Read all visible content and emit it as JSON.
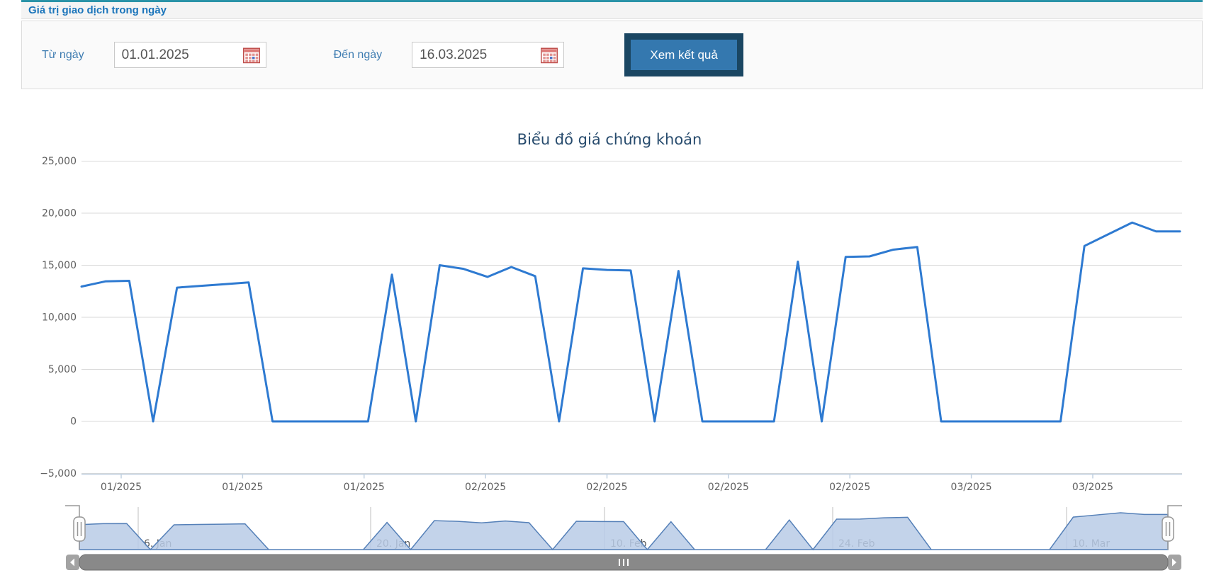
{
  "panel": {
    "title": "Giá trị giao dịch trong ngày"
  },
  "filter": {
    "from_label": "Từ ngày",
    "from_value": "01.01.2025",
    "to_label": "Đến ngày",
    "to_value": "16.03.2025",
    "submit_label": "Xem kết quả",
    "calendar_icon": "calendar-icon"
  },
  "chart_data": {
    "type": "line",
    "title": "Biểu đồ giá chứng khoán",
    "ylabel": "",
    "xlabel": "",
    "ylim": [
      -5000,
      25000
    ],
    "grid": true,
    "y_ticks": [
      25000,
      20000,
      15000,
      10000,
      5000,
      0,
      -5000
    ],
    "x_tick_labels": [
      "01/2025",
      "01/2025",
      "01/2025",
      "02/2025",
      "02/2025",
      "02/2025",
      "02/2025",
      "03/2025",
      "03/2025"
    ],
    "series": [
      {
        "name": "Giá chứng khoán",
        "dates": [
          "01/01",
          "01/03",
          "01/04",
          "01/06",
          "01/07",
          "01/09",
          "01/11",
          "01/12",
          "01/14",
          "01/15",
          "01/17",
          "01/19",
          "01/20",
          "01/22",
          "01/24",
          "01/25",
          "01/27",
          "01/28",
          "01/30",
          "02/01",
          "02/02",
          "02/04",
          "02/05",
          "02/07",
          "02/09",
          "02/10",
          "02/12",
          "02/13",
          "02/15",
          "02/17",
          "02/18",
          "02/20",
          "02/21",
          "02/23",
          "02/25",
          "02/26",
          "02/28",
          "03/02",
          "03/03",
          "03/05",
          "03/06",
          "03/08",
          "03/10",
          "03/11",
          "03/13",
          "03/14",
          "03/16"
        ],
        "values": [
          12950,
          13450,
          13500,
          0,
          12850,
          13020,
          13180,
          13350,
          0,
          0,
          0,
          0,
          0,
          14100,
          0,
          15000,
          14650,
          13880,
          14830,
          13950,
          0,
          14700,
          14550,
          14500,
          0,
          14450,
          0,
          0,
          0,
          0,
          15350,
          0,
          15800,
          15850,
          16500,
          16750,
          0,
          0,
          0,
          0,
          0,
          0,
          16850,
          17975,
          19100,
          18250,
          18250
        ]
      }
    ],
    "navigator": {
      "labels": [
        "6. Jan",
        "20. Jan",
        "10. Feb",
        "24. Feb",
        "10. Mar"
      ],
      "grip": "III"
    },
    "colors": {
      "line": "#2e7ad1",
      "grid": "#d8d8d8",
      "axis_line": "#c0d0e0",
      "tick_label": "#606060",
      "title": "#274b6d",
      "nav_fill": "#b9cbe6",
      "nav_line": "#5580b8",
      "nav_grid": "#bfbfbf",
      "nav_label": "#555555",
      "frame": "#999999",
      "handle_fill": "#fdfdfd",
      "handle_stroke": "#979797",
      "scrollbar_thumb": "#898989",
      "scrollbar_thumb_border": "#6e6e6e",
      "scrollbar_button": "#a3a3a3",
      "scrollbar_arrow": "#ffffff"
    }
  }
}
